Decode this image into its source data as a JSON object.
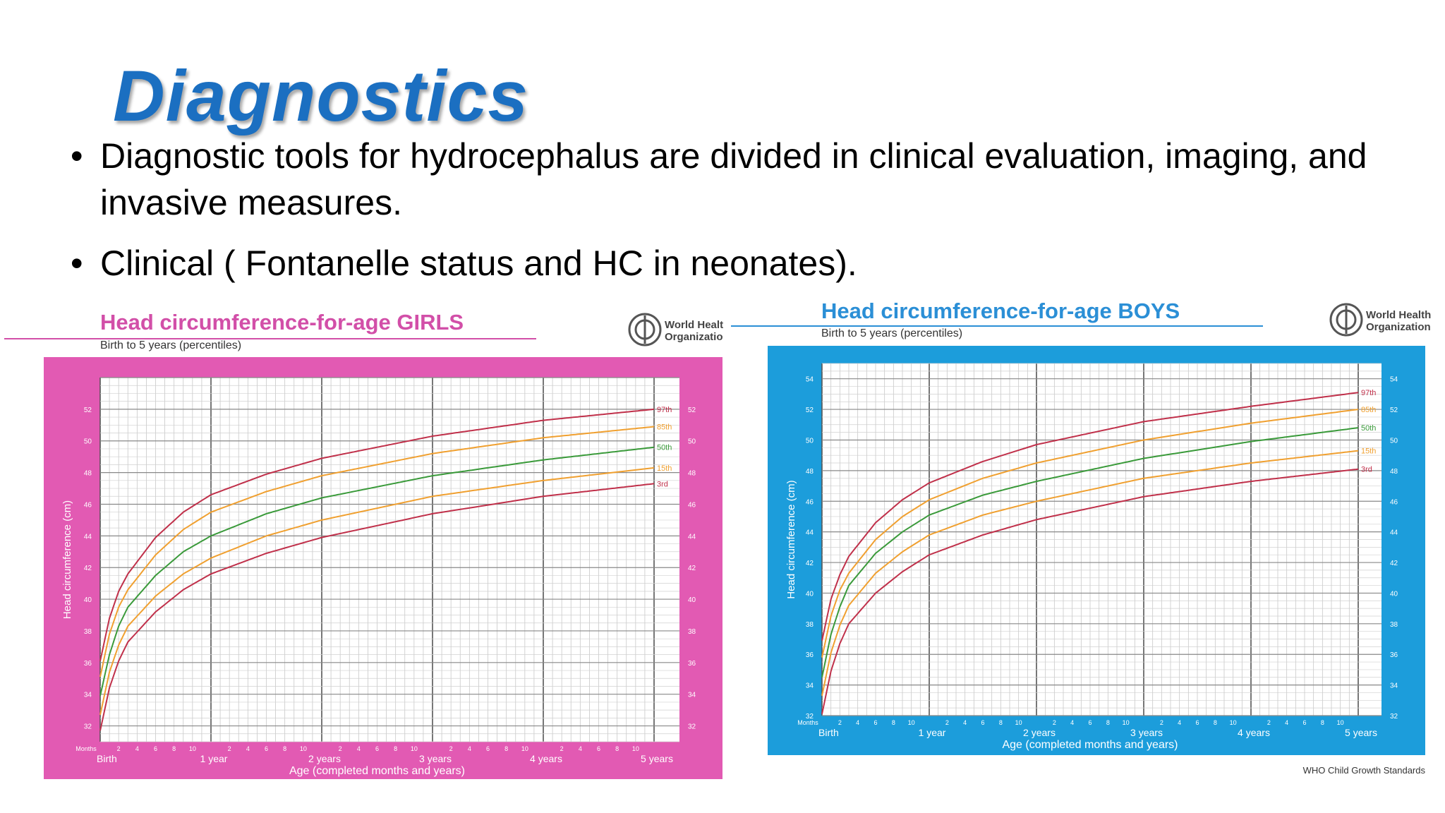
{
  "slide": {
    "title": "Diagnostics",
    "bullets": [
      "Diagnostic tools for hydrocephalus are divided in clinical evaluation, imaging, and invasive measures.",
      "Clinical ( Fontanelle status and HC in neonates)."
    ]
  },
  "chart_data": [
    {
      "type": "line",
      "title": "Head circumference-for-age  GIRLS",
      "subtitle": "Birth to 5 years (percentiles)",
      "logo_text": [
        "World Healt",
        "Organizatio"
      ],
      "xlabel": "Age (completed months and years)",
      "ylabel": "Head circumference (cm)",
      "xlim": [
        0,
        60
      ],
      "ylim": [
        31,
        54
      ],
      "y_ticks": [
        32,
        34,
        36,
        38,
        40,
        42,
        44,
        46,
        48,
        50,
        52
      ],
      "x_month_ticks": [
        "Months",
        "2",
        "4",
        "6",
        "8",
        "10",
        "2",
        "4",
        "6",
        "8",
        "10",
        "2",
        "4",
        "6",
        "8",
        "10",
        "2",
        "4",
        "6",
        "8",
        "10",
        "2",
        "4",
        "6",
        "8",
        "10"
      ],
      "x_year_labels": [
        "Birth",
        "1 year",
        "2 years",
        "3 years",
        "4 years",
        "5 years"
      ],
      "grid": true,
      "colors": {
        "background": "#e25ab3",
        "title": "#d24fa8",
        "curve_3_97": "#c0304a",
        "curve_15_85": "#f0a030",
        "curve_50": "#3a9a3a"
      },
      "series": [
        {
          "name": "97th",
          "x": [
            0,
            1,
            2,
            3,
            6,
            9,
            12,
            18,
            24,
            36,
            48,
            60
          ],
          "values": [
            36.1,
            38.8,
            40.5,
            41.6,
            43.9,
            45.5,
            46.6,
            47.9,
            48.9,
            50.3,
            51.3,
            52.0
          ]
        },
        {
          "name": "85th",
          "x": [
            0,
            1,
            2,
            3,
            6,
            9,
            12,
            18,
            24,
            36,
            48,
            60
          ],
          "values": [
            35.1,
            37.8,
            39.5,
            40.6,
            42.8,
            44.4,
            45.5,
            46.8,
            47.8,
            49.2,
            50.2,
            50.9
          ]
        },
        {
          "name": "50th",
          "x": [
            0,
            1,
            2,
            3,
            6,
            9,
            12,
            18,
            24,
            36,
            48,
            60
          ],
          "values": [
            33.9,
            36.5,
            38.3,
            39.5,
            41.5,
            43.0,
            44.0,
            45.4,
            46.4,
            47.8,
            48.8,
            49.6
          ]
        },
        {
          "name": "15th",
          "x": [
            0,
            1,
            2,
            3,
            6,
            9,
            12,
            18,
            24,
            36,
            48,
            60
          ],
          "values": [
            32.7,
            35.4,
            37.1,
            38.3,
            40.2,
            41.6,
            42.6,
            44.0,
            45.0,
            46.5,
            47.5,
            48.3
          ]
        },
        {
          "name": "3rd",
          "x": [
            0,
            1,
            2,
            3,
            6,
            9,
            12,
            18,
            24,
            36,
            48,
            60
          ],
          "values": [
            31.7,
            34.4,
            36.1,
            37.3,
            39.2,
            40.6,
            41.6,
            42.9,
            43.9,
            45.4,
            46.5,
            47.3
          ]
        }
      ]
    },
    {
      "type": "line",
      "title": "Head circumference-for-age  BOYS",
      "subtitle": "Birth to 5 years (percentiles)",
      "logo_text": [
        "World Health",
        "Organization"
      ],
      "xlabel": "Age (completed months and years)",
      "ylabel": "Head circumference (cm)",
      "footer": "WHO Child Growth Standards",
      "xlim": [
        0,
        60
      ],
      "ylim": [
        32,
        55
      ],
      "y_ticks": [
        32,
        34,
        36,
        38,
        40,
        42,
        44,
        46,
        48,
        50,
        52,
        54
      ],
      "x_month_ticks": [
        "Months",
        "2",
        "4",
        "6",
        "8",
        "10",
        "2",
        "4",
        "6",
        "8",
        "10",
        "2",
        "4",
        "6",
        "8",
        "10",
        "2",
        "4",
        "6",
        "8",
        "10",
        "2",
        "4",
        "6",
        "8",
        "10"
      ],
      "x_year_labels": [
        "Birth",
        "1 year",
        "2 years",
        "3 years",
        "4 years",
        "5 years"
      ],
      "grid": true,
      "colors": {
        "background": "#1c9ddb",
        "title": "#2b8fd6",
        "curve_3_97": "#c0304a",
        "curve_15_85": "#f0a030",
        "curve_50": "#3a9a3a"
      },
      "series": [
        {
          "name": "97th",
          "x": [
            0,
            1,
            2,
            3,
            6,
            9,
            12,
            18,
            24,
            36,
            48,
            60
          ],
          "values": [
            36.9,
            39.6,
            41.2,
            42.4,
            44.6,
            46.1,
            47.2,
            48.6,
            49.7,
            51.2,
            52.2,
            53.1
          ]
        },
        {
          "name": "85th",
          "x": [
            0,
            1,
            2,
            3,
            6,
            9,
            12,
            18,
            24,
            36,
            48,
            60
          ],
          "values": [
            35.8,
            38.5,
            40.2,
            41.3,
            43.5,
            45.0,
            46.1,
            47.5,
            48.5,
            50.0,
            51.1,
            52.0
          ]
        },
        {
          "name": "50th",
          "x": [
            0,
            1,
            2,
            3,
            6,
            9,
            12,
            18,
            24,
            36,
            48,
            60
          ],
          "values": [
            34.5,
            37.3,
            39.1,
            40.5,
            42.6,
            44.0,
            45.1,
            46.4,
            47.3,
            48.8,
            49.9,
            50.8
          ]
        },
        {
          "name": "15th",
          "x": [
            0,
            1,
            2,
            3,
            6,
            9,
            12,
            18,
            24,
            36,
            48,
            60
          ],
          "values": [
            33.3,
            36.1,
            37.9,
            39.2,
            41.3,
            42.7,
            43.8,
            45.1,
            46.0,
            47.5,
            48.5,
            49.3
          ]
        },
        {
          "name": "3rd",
          "x": [
            0,
            1,
            2,
            3,
            6,
            9,
            12,
            18,
            24,
            36,
            48,
            60
          ],
          "values": [
            32.1,
            34.9,
            36.7,
            38.0,
            40.0,
            41.4,
            42.5,
            43.8,
            44.8,
            46.3,
            47.3,
            48.1
          ]
        }
      ]
    }
  ]
}
